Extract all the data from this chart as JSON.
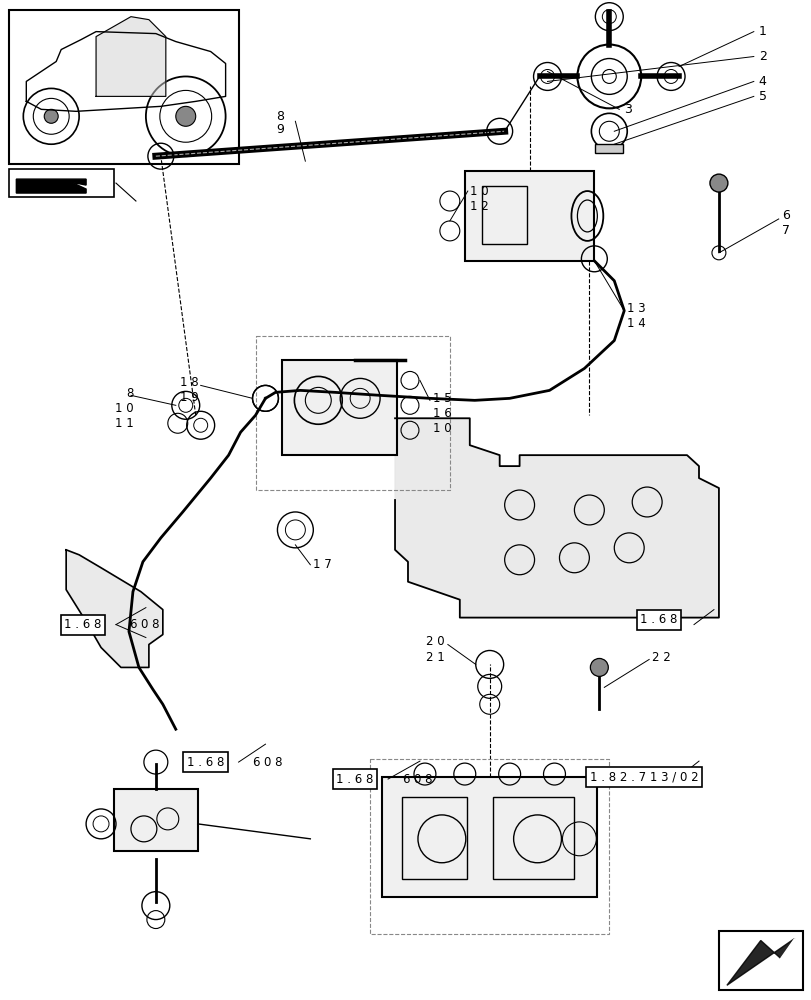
{
  "bg_color": "#ffffff",
  "line_color": "#000000"
}
